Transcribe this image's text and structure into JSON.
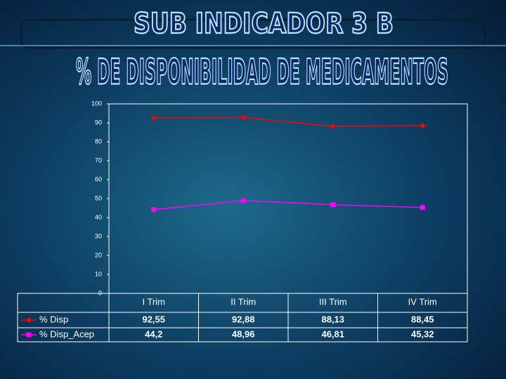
{
  "header": {
    "title": "SUB INDICADOR 3 B",
    "subtitle": "% DE DISPONIBILIDAD DE MEDICAMENTOS"
  },
  "chart_data": {
    "type": "line",
    "categories": [
      "I Trim",
      "II Trim",
      "III Trim",
      "IV Trim"
    ],
    "series": [
      {
        "name": "% Disp",
        "color": "#ff0000",
        "values": [
          92.55,
          92.88,
          88.13,
          88.45
        ],
        "value_labels": [
          "92,55",
          "92,88",
          "88,13",
          "88,45"
        ]
      },
      {
        "name": "% Disp_Acep",
        "color": "#ff00ff",
        "values": [
          44.2,
          48.96,
          46.81,
          45.32
        ],
        "value_labels": [
          "44,2",
          "48,96",
          "46,81",
          "45,32"
        ]
      }
    ],
    "ylim": [
      0,
      100
    ],
    "yticks": [
      0,
      10,
      20,
      30,
      40,
      50,
      60,
      70,
      80,
      90,
      100
    ]
  }
}
